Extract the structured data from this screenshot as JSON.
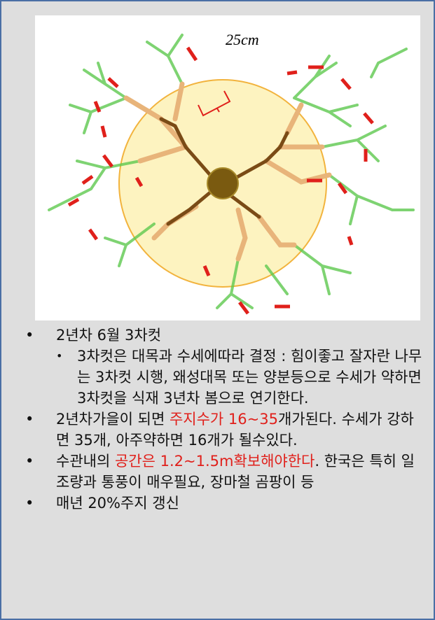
{
  "figure": {
    "label": "25cm"
  },
  "bullets": [
    {
      "text": "2년차 6월 3차컷",
      "sub": [
        "3차컷은 대목과 수세에따라 결정 : 힘이좋고 잘자란 나무는 3차컷 시행, 왜성대목 또는 양분등으로 수세가 약하면 3차컷을 식재 3년차 봄으로 연기한다."
      ]
    },
    {
      "parts": [
        "2년차가을이 되면 ",
        "주지수가 16~35",
        "개가된다. 수세가 강하면 35개, 아주약하면 16개가 될수있다."
      ]
    },
    {
      "parts": [
        "수관내의 ",
        "공간은 1.2~1.5m확보해야한다",
        ". 한국은 특히 일조량과 통풍이 매우필요, 장마철 곰팡이 등"
      ]
    },
    {
      "text": "매년 20%주지 갱신"
    }
  ]
}
